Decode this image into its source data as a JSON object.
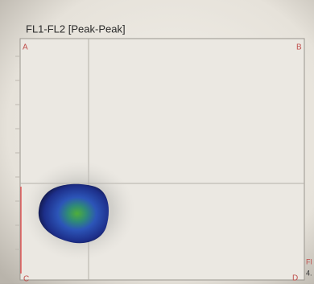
{
  "plot": {
    "title": "FL1-FL2 [Peak-Peak]",
    "quadrants": [
      "A",
      "B",
      "C",
      "D"
    ],
    "edge_texts": [
      "Fl",
      "4."
    ]
  }
}
